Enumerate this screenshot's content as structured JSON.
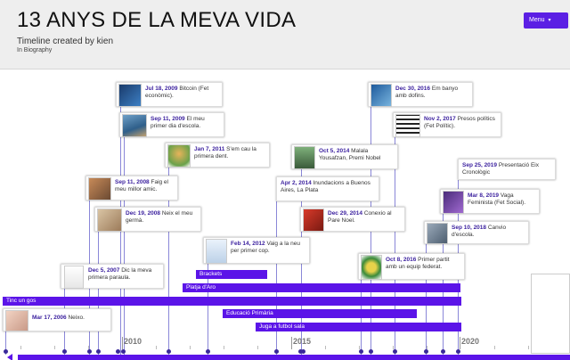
{
  "header": {
    "title": "13 ANYS DE LA MEVA VIDA",
    "subtitle": "Timeline created by kien",
    "category": "In Biography",
    "menu_label": "Menu",
    "menu_caret": "▾"
  },
  "colors": {
    "accent": "#5b14e8",
    "date_text": "#3a1f9e",
    "header_bg": "#eeeeee"
  },
  "events": [
    {
      "date": "Jul 18, 2009",
      "text": "Bitcoin (Fet econòmic).",
      "icon": "bitcoin-thumbnail"
    },
    {
      "date": "Sep 11, 2009",
      "text": "El meu primer dia d'escola.",
      "icon": "school-thumbnail"
    },
    {
      "date": "Jan 7, 2011",
      "text": "S'em cau la primera dent.",
      "icon": "tooth-fairy-thumbnail"
    },
    {
      "date": "Sep 11, 2008",
      "text": "Faig el meu millor amic.",
      "icon": "friends-thumbnail"
    },
    {
      "date": "Dec 19, 2008",
      "text": "Neix el meu germà.",
      "icon": "baby-thumbnail"
    },
    {
      "date": "Dec 5, 2007",
      "text": "Dic la meva primera paraula.",
      "icon": "word-thumbnail"
    },
    {
      "date": "Mar 17, 2006",
      "text": "Neixo.",
      "icon": "newborn-thumbnail"
    },
    {
      "date": "Oct 5, 2014",
      "text": "Malala Yousafzan, Premi Nobel",
      "icon": "malala-thumbnail"
    },
    {
      "date": "Apr 2, 2014",
      "text": "Inundacions a Buenos Aires, La Plata",
      "icon": ""
    },
    {
      "date": "Dec 29, 2014",
      "text": "Conexio al Pare Noel.",
      "icon": "santa-thumbnail"
    },
    {
      "date": "Feb 14, 2012",
      "text": "Vaig a la neu per primer cop.",
      "icon": "snow-thumbnail"
    },
    {
      "date": "Dec 30, 2016",
      "text": "Em banyo amb dofins.",
      "icon": "dolphin-thumbnail"
    },
    {
      "date": "Nov 2, 2017",
      "text": "Presos polítics (Fet Polític).",
      "icon": "prisoners-thumbnail"
    },
    {
      "date": "Sep 25, 2019",
      "text": "Presentació Eix Cronològic",
      "icon": ""
    },
    {
      "date": "Mar 8, 2019",
      "text": "Vaga Feminista (Fet Social).",
      "icon": "strike-thumbnail"
    },
    {
      "date": "Sep 10, 2018",
      "text": "Canvio d'escola.",
      "icon": "new-school-thumbnail"
    },
    {
      "date": "Oct 8, 2016",
      "text": "Primer partit amb un equip federat.",
      "icon": "club-crest-thumbnail"
    }
  ],
  "spans": [
    {
      "label": "Brackets"
    },
    {
      "label": "Platja d'Aro"
    },
    {
      "label": "Tinc un gos"
    },
    {
      "label": "Educació Primària"
    },
    {
      "label": "Juga a futbol sala"
    }
  ],
  "axis": {
    "labels": [
      "2010",
      "2015",
      "2020"
    ]
  }
}
